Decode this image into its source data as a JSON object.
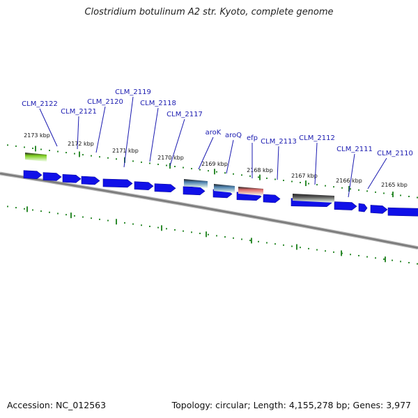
{
  "title": "Clostridium botulinum A2 str. Kyoto, complete genome",
  "footer": {
    "accession": "Accession: NC_012563",
    "summary": "Topology: circular; Length: 4,155,278 bp; Genes: 3,977"
  },
  "colors": {
    "cds": "#1010e8",
    "leader_line": "#1a1ab0",
    "backbone": "#7a7a7a",
    "tick": "#2e8b2e"
  },
  "kbp_ticks": [
    {
      "label": "2173 kbp"
    },
    {
      "label": "2172 kbp"
    },
    {
      "label": "2171 kbp"
    },
    {
      "label": "2170 kbp"
    },
    {
      "label": "2169 kbp"
    },
    {
      "label": "2168 kbp"
    },
    {
      "label": "2167 kbp"
    },
    {
      "label": "2166 kbp"
    },
    {
      "label": "2165 kbp"
    }
  ],
  "gene_labels": [
    {
      "label": "CLM_2122"
    },
    {
      "label": "CLM_2121"
    },
    {
      "label": "CLM_2120"
    },
    {
      "label": "CLM_2119"
    },
    {
      "label": "CLM_2118"
    },
    {
      "label": "CLM_2117"
    },
    {
      "label": "aroK"
    },
    {
      "label": "aroQ"
    },
    {
      "label": "efp"
    },
    {
      "label": "CLM_2113"
    },
    {
      "label": "CLM_2112"
    },
    {
      "label": "CLM_2111"
    },
    {
      "label": "CLM_2110"
    }
  ],
  "category_features": [
    {
      "name": "CLM_2122",
      "color": "#7fcf20"
    },
    {
      "name": "aroK",
      "color": "#4d82b0"
    },
    {
      "name": "aroQ",
      "color": "#4d82b0"
    },
    {
      "name": "efp",
      "color": "#e07070"
    },
    {
      "name": "CLM_2112",
      "color": "#555555"
    }
  ]
}
